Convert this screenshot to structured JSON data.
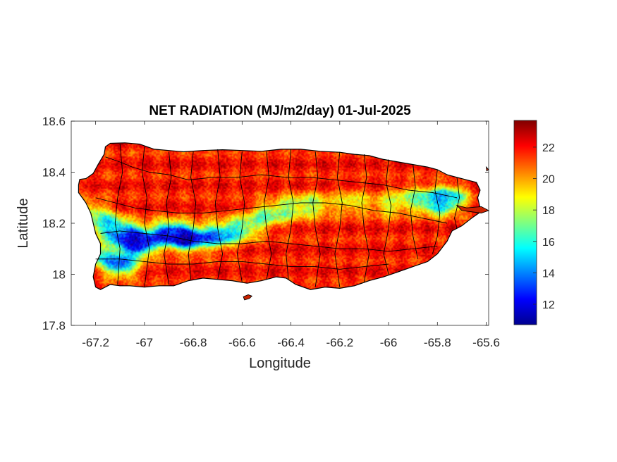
{
  "chart_data": {
    "type": "heatmap",
    "title": "NET RADIATION (MJ/m2/day) 01-Jul-2025",
    "xlabel": "Longitude",
    "ylabel": "Latitude",
    "xlim": [
      -67.3,
      -65.59
    ],
    "ylim": [
      17.8,
      18.6
    ],
    "xticks": [
      -67.2,
      -67,
      -66.8,
      -66.6,
      -66.4,
      -66.2,
      -66,
      -65.8,
      -65.6
    ],
    "xtick_labels": [
      "-67.2",
      "-67",
      "-66.8",
      "-66.6",
      "-66.4",
      "-66.2",
      "-66",
      "-65.8",
      "-65.6"
    ],
    "yticks": [
      17.8,
      18,
      18.2,
      18.4,
      18.6
    ],
    "ytick_labels": [
      "17.8",
      "18",
      "18.2",
      "18.4",
      "18.6"
    ],
    "colorbar": {
      "colormap": "jet",
      "min": 10.7,
      "max": 23.7,
      "ticks": [
        12,
        14,
        16,
        18,
        20,
        22
      ],
      "tick_labels": [
        "12",
        "14",
        "16",
        "18",
        "20",
        "22"
      ]
    },
    "grid": false,
    "value_pattern": {
      "background_value": 21.8,
      "low_band": [
        {
          "lon": -67.22,
          "lat": 18.24,
          "value": 18.0
        },
        {
          "lon": -67.15,
          "lat": 18.19,
          "value": 15.5
        },
        {
          "lon": -67.07,
          "lat": 18.15,
          "value": 13.0
        },
        {
          "lon": -67.02,
          "lat": 18.12,
          "value": 12.0
        },
        {
          "lon": -66.9,
          "lat": 18.16,
          "value": 12.5
        },
        {
          "lon": -66.82,
          "lat": 18.14,
          "value": 11.8
        },
        {
          "lon": -66.7,
          "lat": 18.15,
          "value": 14.0
        },
        {
          "lon": -66.6,
          "lat": 18.18,
          "value": 16.5
        },
        {
          "lon": -66.5,
          "lat": 18.23,
          "value": 17.2
        },
        {
          "lon": -66.4,
          "lat": 18.26,
          "value": 17.5
        },
        {
          "lon": -66.3,
          "lat": 18.27,
          "value": 18.0
        },
        {
          "lon": -66.15,
          "lat": 18.28,
          "value": 18.5
        },
        {
          "lon": -66.0,
          "lat": 18.27,
          "value": 18.5
        },
        {
          "lon": -65.9,
          "lat": 18.3,
          "value": 18.0
        },
        {
          "lon": -65.8,
          "lat": 18.28,
          "value": 14.5
        },
        {
          "lon": -65.75,
          "lat": 18.3,
          "value": 16.0
        },
        {
          "lon": -67.1,
          "lat": 18.04,
          "value": 13.5
        },
        {
          "lon": -67.2,
          "lat": 18.08,
          "value": 17.0
        }
      ]
    }
  }
}
